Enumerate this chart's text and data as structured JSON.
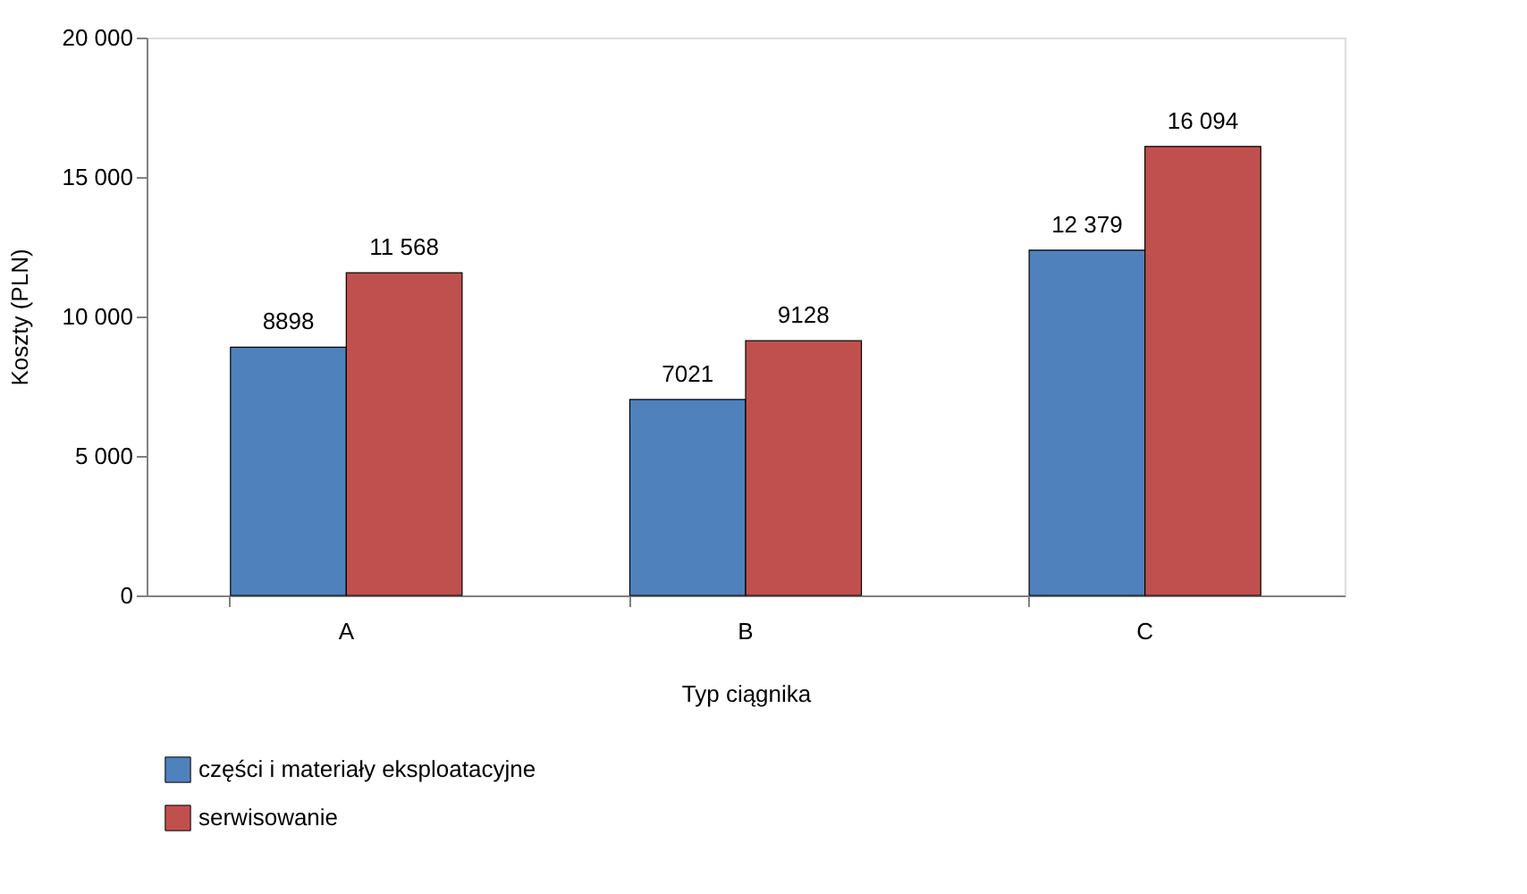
{
  "chart_data": {
    "type": "bar",
    "xlabel": "Typ ciągnika",
    "ylabel": "Koszty (PLN)",
    "categories": [
      "A",
      "B",
      "C"
    ],
    "series": [
      {
        "name": "części i materiały eksploatacyjne",
        "color": "#4f81bd",
        "values": [
          8898,
          7021,
          12379
        ],
        "value_labels": [
          "8898",
          "7021",
          "12 379"
        ]
      },
      {
        "name": "serwisowanie",
        "color": "#c0504d",
        "values": [
          11568,
          9128,
          16094
        ],
        "value_labels": [
          "11 568",
          "9128",
          "16 094"
        ]
      }
    ],
    "ylim": [
      0,
      20000
    ],
    "yticks": [
      {
        "value": 0,
        "label": "0"
      },
      {
        "value": 5000,
        "label": "5 000"
      },
      {
        "value": 10000,
        "label": "10 000"
      },
      {
        "value": 15000,
        "label": "15 000"
      },
      {
        "value": 20000,
        "label": "20 000"
      }
    ],
    "grid": false,
    "legend": "bottom"
  }
}
